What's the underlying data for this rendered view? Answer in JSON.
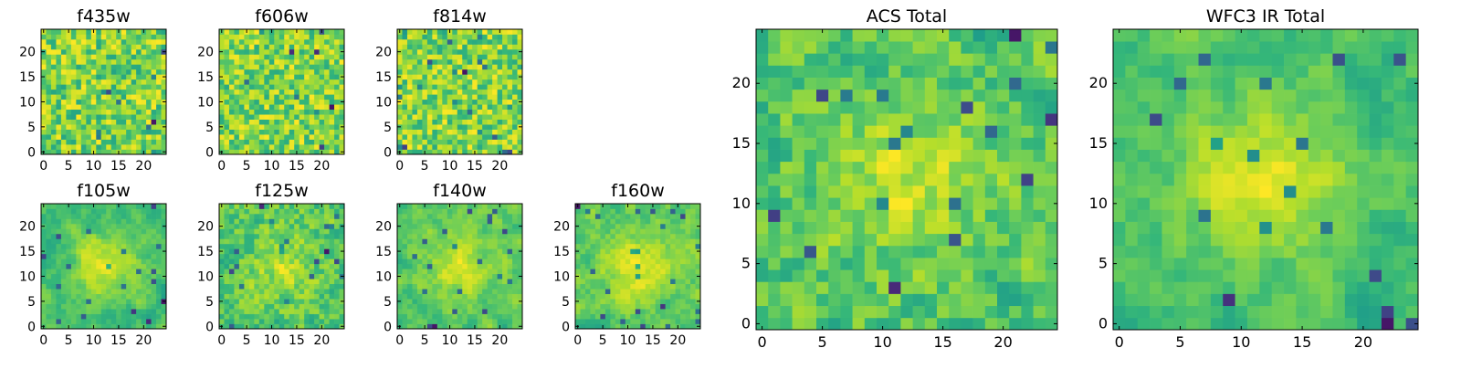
{
  "chart_data": [
    {
      "type": "heatmap",
      "title": "f435w",
      "x_ticks": [
        "0",
        "5",
        "10",
        "15",
        "20"
      ],
      "y_ticks": [
        "0",
        "5",
        "10",
        "15",
        "20"
      ],
      "xlim": [
        0,
        25
      ],
      "ylim": [
        0,
        25
      ],
      "grid": false,
      "colormap": "viridis"
    },
    {
      "type": "heatmap",
      "title": "f606w",
      "x_ticks": [
        "0",
        "5",
        "10",
        "15",
        "20"
      ],
      "y_ticks": [
        "0",
        "5",
        "10",
        "15",
        "20"
      ],
      "xlim": [
        0,
        25
      ],
      "ylim": [
        0,
        25
      ],
      "grid": false,
      "colormap": "viridis"
    },
    {
      "type": "heatmap",
      "title": "f814w",
      "x_ticks": [
        "0",
        "5",
        "10",
        "15",
        "20"
      ],
      "y_ticks": [
        "0",
        "5",
        "10",
        "15",
        "20"
      ],
      "xlim": [
        0,
        25
      ],
      "ylim": [
        0,
        25
      ],
      "grid": false,
      "colormap": "viridis"
    },
    {
      "type": "heatmap",
      "title": "f105w",
      "x_ticks": [
        "0",
        "5",
        "10",
        "15",
        "20"
      ],
      "y_ticks": [
        "0",
        "5",
        "10",
        "15",
        "20"
      ],
      "xlim": [
        0,
        25
      ],
      "ylim": [
        0,
        25
      ],
      "grid": false,
      "colormap": "viridis"
    },
    {
      "type": "heatmap",
      "title": "f125w",
      "x_ticks": [
        "0",
        "5",
        "10",
        "15",
        "20"
      ],
      "y_ticks": [
        "0",
        "5",
        "10",
        "15",
        "20"
      ],
      "xlim": [
        0,
        25
      ],
      "ylim": [
        0,
        25
      ],
      "grid": false,
      "colormap": "viridis"
    },
    {
      "type": "heatmap",
      "title": "f140w",
      "x_ticks": [
        "0",
        "5",
        "10",
        "15",
        "20"
      ],
      "y_ticks": [
        "0",
        "5",
        "10",
        "15",
        "20"
      ],
      "xlim": [
        0,
        25
      ],
      "ylim": [
        0,
        25
      ],
      "grid": false,
      "colormap": "viridis"
    },
    {
      "type": "heatmap",
      "title": "f160w",
      "x_ticks": [
        "0",
        "5",
        "10",
        "15",
        "20"
      ],
      "y_ticks": [
        "0",
        "5",
        "10",
        "15",
        "20"
      ],
      "xlim": [
        0,
        25
      ],
      "ylim": [
        0,
        25
      ],
      "grid": false,
      "colormap": "viridis"
    },
    {
      "type": "heatmap",
      "title": "ACS Total",
      "x_ticks": [
        "0",
        "5",
        "10",
        "15",
        "20"
      ],
      "y_ticks": [
        "0",
        "5",
        "10",
        "15",
        "20"
      ],
      "xlim": [
        0,
        25
      ],
      "ylim": [
        0,
        25
      ],
      "grid": false,
      "colormap": "viridis"
    },
    {
      "type": "heatmap",
      "title": "WFC3 IR Total",
      "x_ticks": [
        "0",
        "5",
        "10",
        "15",
        "20"
      ],
      "y_ticks": [
        "0",
        "5",
        "10",
        "15",
        "20"
      ],
      "xlim": [
        0,
        25
      ],
      "ylim": [
        0,
        25
      ],
      "grid": false,
      "colormap": "viridis"
    }
  ],
  "colors": {
    "viridis_low": "#440154",
    "viridis_mid": "#21918c",
    "viridis_high": "#fde725",
    "axis": "#000000"
  }
}
